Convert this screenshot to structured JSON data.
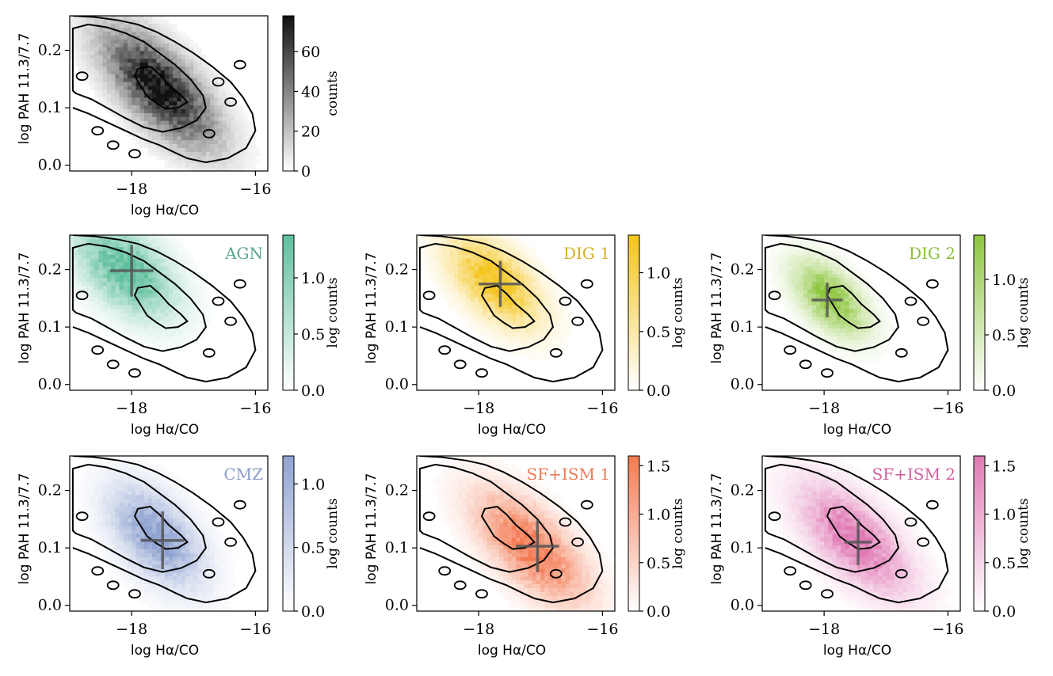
{
  "figure_title": "",
  "chart_data": [
    {
      "type": "heatmap",
      "panel": "all",
      "panel_label": "",
      "colormap": {
        "low": "#ffffff",
        "high": "#111111"
      },
      "colorbar_label": "counts",
      "colorbar_max": 78,
      "colorbar_ticks": [
        0,
        20,
        40,
        60
      ],
      "xlabel": "log Hα/CO",
      "ylabel": "log PAH 11.3/7.7",
      "xlim": [
        -19.0,
        -15.8
      ],
      "ylim": [
        -0.01,
        0.26
      ],
      "xticks": [
        -18,
        -16
      ],
      "yticks": [
        0.0,
        0.1,
        0.2
      ],
      "density": {
        "center": [
          -17.55,
          0.135
        ],
        "sigma_x": 0.55,
        "sigma_y": 0.045,
        "tilt": -0.075,
        "amplitude": 78,
        "spread": 1.25
      },
      "marker": null
    },
    {
      "type": "heatmap",
      "panel": "AGN",
      "panel_label": "AGN",
      "label_color": "#5aa88a",
      "colormap": {
        "low": "#ffffff",
        "high": "#5fbf9c"
      },
      "colorbar_label": "log counts",
      "colorbar_max": 1.38,
      "colorbar_ticks": [
        0.0,
        0.5,
        1.0
      ],
      "xlabel": "log Hα/CO",
      "ylabel": "log PAH 11.3/7.7",
      "xlim": [
        -19.0,
        -15.8
      ],
      "ylim": [
        -0.01,
        0.26
      ],
      "xticks": [
        -18,
        -16
      ],
      "yticks": [
        0.0,
        0.1,
        0.2
      ],
      "density": {
        "center": [
          -18.1,
          0.2
        ],
        "sigma_x": 0.5,
        "sigma_y": 0.045,
        "tilt": -0.05,
        "amplitude": 1.38,
        "spread": 1.2
      },
      "marker": {
        "x": -18.0,
        "y": 0.198,
        "xerr": 0.35,
        "yerr": 0.045
      }
    },
    {
      "type": "heatmap",
      "panel": "DIG 1",
      "panel_label": "DIG 1",
      "label_color": "#d4b02a",
      "colormap": {
        "low": "#ffffff",
        "high": "#f4c41a"
      },
      "colorbar_label": "log counts",
      "colorbar_max": 1.32,
      "colorbar_ticks": [
        0.0,
        0.5,
        1.0
      ],
      "xlabel": "log Hα/CO",
      "ylabel": "log PAH 11.3/7.7",
      "xlim": [
        -19.0,
        -15.8
      ],
      "ylim": [
        -0.01,
        0.26
      ],
      "xticks": [
        -18,
        -16
      ],
      "yticks": [
        0.0,
        0.1,
        0.2
      ],
      "density": {
        "center": [
          -17.75,
          0.18
        ],
        "sigma_x": 0.45,
        "sigma_y": 0.04,
        "tilt": -0.06,
        "amplitude": 1.32,
        "spread": 1.2
      },
      "marker": {
        "x": -17.65,
        "y": 0.175,
        "xerr": 0.35,
        "yerr": 0.04
      }
    },
    {
      "type": "heatmap",
      "panel": "DIG 2",
      "panel_label": "DIG 2",
      "label_color": "#8cbf3f",
      "colormap": {
        "low": "#ffffff",
        "high": "#8dc63f"
      },
      "colorbar_label": "log counts",
      "colorbar_max": 1.4,
      "colorbar_ticks": [
        0.0,
        0.5,
        1.0
      ],
      "xlabel": "log Hα/CO",
      "ylabel": "log PAH 11.3/7.7",
      "xlim": [
        -19.0,
        -15.8
      ],
      "ylim": [
        -0.01,
        0.26
      ],
      "xticks": [
        -18,
        -16
      ],
      "yticks": [
        0.0,
        0.1,
        0.2
      ],
      "density": {
        "center": [
          -17.9,
          0.15
        ],
        "sigma_x": 0.38,
        "sigma_y": 0.035,
        "tilt": -0.06,
        "amplitude": 1.4,
        "spread": 1.1
      },
      "marker": {
        "x": -17.95,
        "y": 0.147,
        "xerr": 0.25,
        "yerr": 0.03
      }
    },
    {
      "type": "heatmap",
      "panel": "CMZ",
      "panel_label": "CMZ",
      "label_color": "#8a9cc8",
      "colormap": {
        "low": "#ffffff",
        "high": "#8fa3d1"
      },
      "colorbar_label": "log counts",
      "colorbar_max": 1.22,
      "colorbar_ticks": [
        0.0,
        0.5,
        1.0
      ],
      "xlabel": "log Hα/CO",
      "ylabel": "log PAH 11.3/7.7",
      "xlim": [
        -19.0,
        -15.8
      ],
      "ylim": [
        -0.01,
        0.26
      ],
      "xticks": [
        -18,
        -16
      ],
      "yticks": [
        0.0,
        0.1,
        0.2
      ],
      "density": {
        "center": [
          -17.6,
          0.12
        ],
        "sigma_x": 0.45,
        "sigma_y": 0.045,
        "tilt": -0.06,
        "amplitude": 1.22,
        "spread": 1.25
      },
      "marker": {
        "x": -17.5,
        "y": 0.113,
        "xerr": 0.35,
        "yerr": 0.05
      }
    },
    {
      "type": "heatmap",
      "panel": "SF+ISM 1",
      "panel_label": "SF+ISM 1",
      "label_color": "#e87d57",
      "colormap": {
        "low": "#ffffff",
        "high": "#f37a52"
      },
      "colorbar_label": "log counts",
      "colorbar_max": 1.6,
      "colorbar_ticks": [
        0.0,
        0.5,
        1.0,
        1.5
      ],
      "xlabel": "log Hα/CO",
      "ylabel": "log PAH 11.3/7.7",
      "xlim": [
        -19.0,
        -15.8
      ],
      "ylim": [
        -0.01,
        0.26
      ],
      "xticks": [
        -18,
        -16
      ],
      "yticks": [
        0.0,
        0.1,
        0.2
      ],
      "density": {
        "center": [
          -17.15,
          0.1
        ],
        "sigma_x": 0.55,
        "sigma_y": 0.045,
        "tilt": -0.07,
        "amplitude": 1.6,
        "spread": 1.2
      },
      "marker": {
        "x": -17.05,
        "y": 0.103,
        "xerr": 0.35,
        "yerr": 0.045
      }
    },
    {
      "type": "heatmap",
      "panel": "SF+ISM 2",
      "panel_label": "SF+ISM 2",
      "label_color": "#d1609f",
      "colormap": {
        "low": "#ffffff",
        "high": "#e07ab5"
      },
      "colorbar_label": "log counts",
      "colorbar_max": 1.6,
      "colorbar_ticks": [
        0.0,
        0.5,
        1.0,
        1.5
      ],
      "xlabel": "log Hα/CO",
      "ylabel": "log PAH 11.3/7.7",
      "xlim": [
        -19.0,
        -15.8
      ],
      "ylim": [
        -0.01,
        0.26
      ],
      "xticks": [
        -18,
        -16
      ],
      "yticks": [
        0.0,
        0.1,
        0.2
      ],
      "density": {
        "center": [
          -17.5,
          0.115
        ],
        "sigma_x": 0.55,
        "sigma_y": 0.045,
        "tilt": -0.07,
        "amplitude": 1.6,
        "spread": 1.2
      },
      "marker": {
        "x": -17.45,
        "y": 0.11,
        "xerr": 0.22,
        "yerr": 0.04
      }
    }
  ]
}
